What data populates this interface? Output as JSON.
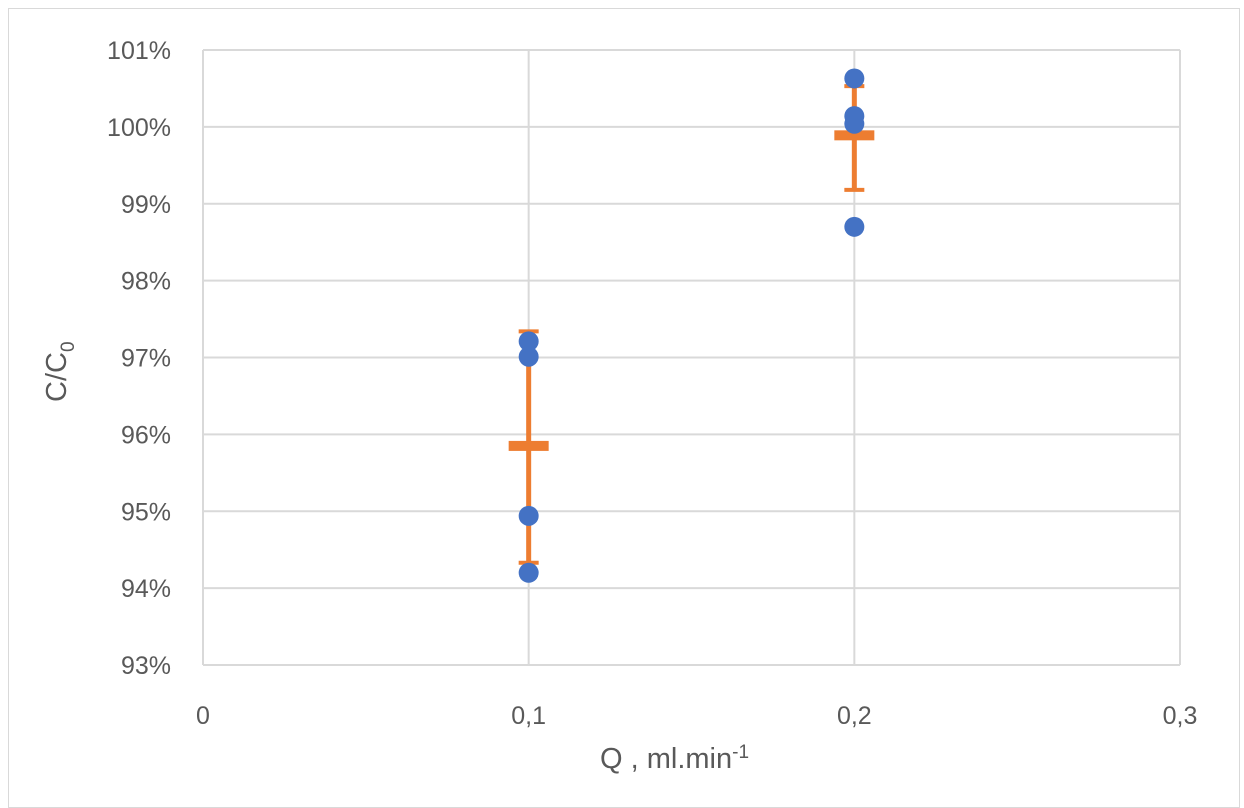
{
  "chart_data": {
    "type": "scatter",
    "title": "",
    "xlabel": "Q , ml.min",
    "xlabel_sup": "-1",
    "ylabel": "C/C",
    "ylabel_sub": "0",
    "xlim": [
      0,
      0.3
    ],
    "ylim": [
      0.93,
      1.01
    ],
    "grid": true,
    "legend": "none",
    "x_ticks": [
      "0",
      "0,1",
      "0,2",
      "0,3"
    ],
    "y_ticks": [
      "93%",
      "94%",
      "95%",
      "96%",
      "97%",
      "98%",
      "99%",
      "100%",
      "101%"
    ],
    "x_tick_values": [
      0,
      0.1,
      0.2,
      0.3
    ],
    "y_tick_values": [
      0.93,
      0.94,
      0.95,
      0.96,
      0.97,
      0.98,
      0.99,
      1.0,
      1.01
    ],
    "points": [
      {
        "x": 0.1,
        "y": 0.9721
      },
      {
        "x": 0.1,
        "y": 0.9701
      },
      {
        "x": 0.1,
        "y": 0.9494
      },
      {
        "x": 0.1,
        "y": 0.942
      },
      {
        "x": 0.2,
        "y": 1.0063
      },
      {
        "x": 0.2,
        "y": 1.0014
      },
      {
        "x": 0.2,
        "y": 1.0004
      },
      {
        "x": 0.2,
        "y": 0.987
      }
    ],
    "means": [
      {
        "x": 0.1,
        "y": 0.9585,
        "err_low": 0.9433,
        "err_high": 0.9734
      },
      {
        "x": 0.2,
        "y": 0.9989,
        "err_low": 0.9918,
        "err_high": 1.0053
      }
    ],
    "colors": {
      "points": "#4472c4",
      "means": "#ed7d31",
      "grid": "#d9d9d9",
      "text": "#595959"
    }
  }
}
